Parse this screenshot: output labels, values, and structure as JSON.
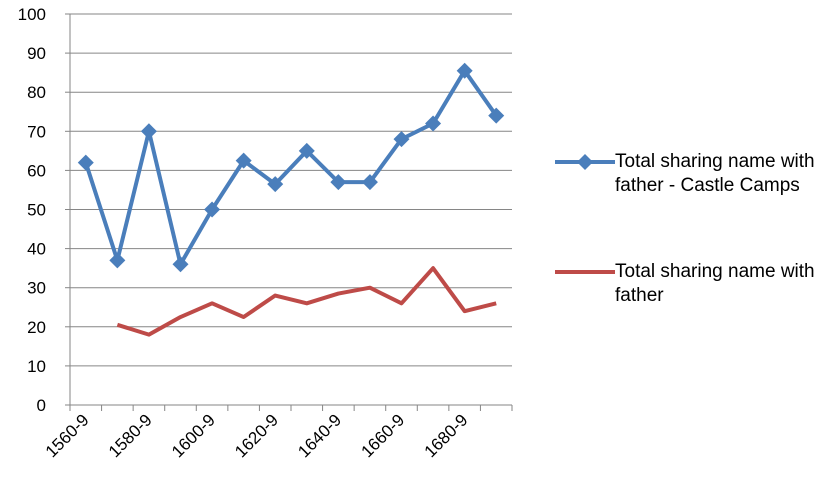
{
  "chart_data": {
    "type": "line",
    "categories": [
      "1560-9",
      null,
      "1580-9",
      null,
      "1600-9",
      null,
      "1620-9",
      null,
      "1640-9",
      null,
      "1660-9",
      null,
      "1680-9",
      null
    ],
    "series": [
      {
        "name": "Total sharing name with father - Castle Camps",
        "color": "#4a7ebb",
        "marker": "diamond",
        "values": [
          62,
          37,
          70,
          36,
          50,
          62.5,
          56.5,
          65,
          57,
          57,
          68,
          72,
          85.5,
          74
        ]
      },
      {
        "name": "Total sharing name with father",
        "color": "#be4b48",
        "marker": "none",
        "values": [
          null,
          20.5,
          18,
          22.5,
          26,
          22.5,
          28,
          26,
          28.5,
          30,
          26,
          35,
          24,
          26
        ]
      }
    ],
    "ylim": [
      0,
      100
    ],
    "yticks": [
      0,
      10,
      20,
      30,
      40,
      50,
      60,
      70,
      80,
      90,
      100
    ],
    "grid": true,
    "legend": "right"
  }
}
